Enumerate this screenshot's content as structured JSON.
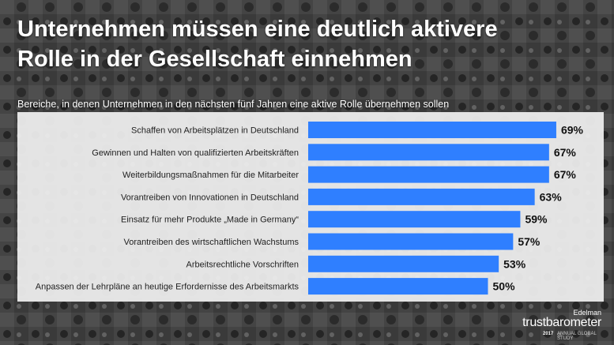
{
  "title": {
    "line1": "Unternehmen müssen eine deutlich aktivere",
    "line2": "Rolle in der Gesellschaft einnehmen"
  },
  "logo": {
    "brand": "Edelman",
    "name": "trustbarometer",
    "year": "2017",
    "study": "ANNUAL GLOBAL STUDY"
  },
  "colors": {
    "bar": "#2f7fff",
    "panel": "#f0f0f0"
  },
  "chart_data": {
    "type": "bar",
    "orientation": "horizontal",
    "title": "Bereiche, in denen Unternehmen in den nächsten fünf Jahren eine aktive Rolle übernehmen sollen",
    "categories": [
      "Schaffen von Arbeitsplätzen in Deutschland",
      "Gewinnen und Halten von qualifizierten Arbeitskräften",
      "Weiterbildungsmaßnahmen für die Mitarbeiter",
      "Vorantreiben von Innovationen in Deutschland",
      "Einsatz für mehr Produkte „Made in Germany“",
      "Vorantreiben des wirtschaftlichen Wachstums",
      "Arbeitsrechtliche Vorschriften",
      "Anpassen der Lehrpläne an heutige Erfordernisse des Arbeitsmarkts"
    ],
    "values": [
      69,
      67,
      67,
      63,
      59,
      57,
      53,
      50
    ],
    "value_labels": [
      "69%",
      "67%",
      "67%",
      "63%",
      "59%",
      "57%",
      "53%",
      "50%"
    ],
    "unit": "%",
    "xlim": [
      0,
      100
    ],
    "legend": "none",
    "grid": false
  }
}
